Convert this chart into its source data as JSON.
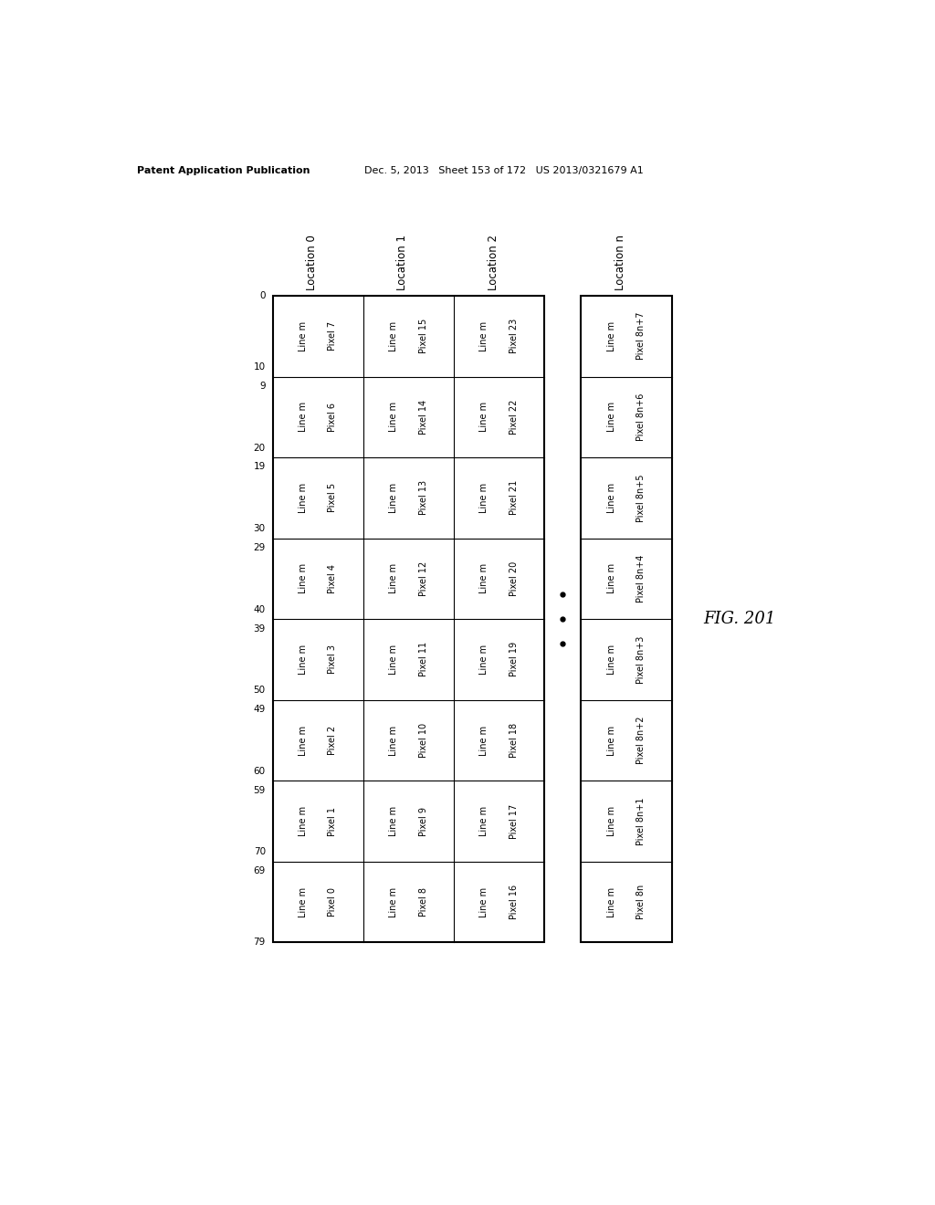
{
  "title": "FIG. 201",
  "header_left": "Patent Application Publication",
  "header_right": "Dec. 5, 2013   Sheet 153 of 172   US 2013/0321679 A1",
  "background_color": "#ffffff",
  "text_color": "#000000",
  "col_labels": [
    "Location 0",
    "Location 1",
    "Location 2",
    "Location n"
  ],
  "row_labels": [
    "0",
    "10 9",
    "20 19",
    "30 29",
    "40 39",
    "50 49",
    "60 59",
    "70 69",
    "79"
  ],
  "cells": [
    [
      "Line m\nPixel 7",
      "Line m\nPixel 15",
      "Line m\nPixel 23",
      "Line m\nPixel 8n+7"
    ],
    [
      "Line m\nPixel 6",
      "Line m\nPixel 14",
      "Line m\nPixel 22",
      "Line m\nPixel 8n+6"
    ],
    [
      "Line m\nPixel 5",
      "Line m\nPixel 13",
      "Line m\nPixel 21",
      "Line m\nPixel 8n+5"
    ],
    [
      "Line m\nPixel 4",
      "Line m\nPixel 12",
      "Line m\nPixel 20",
      "Line m\nPixel 8n+4"
    ],
    [
      "Line m\nPixel 3",
      "Line m\nPixel 11",
      "Line m\nPixel 19",
      "Line m\nPixel 8n+3"
    ],
    [
      "Line m\nPixel 2",
      "Line m\nPixel 10",
      "Line m\nPixel 18",
      "Line m\nPixel 8n+2"
    ],
    [
      "Line m\nPixel 1",
      "Line m\nPixel 9",
      "Line m\nPixel 17",
      "Line m\nPixel 8n+1"
    ],
    [
      "Line m\nPixel 0",
      "Line m\nPixel 8",
      "Line m\nPixel 16",
      "Line m\nPixel 8n"
    ]
  ],
  "num_rows": 8,
  "num_cols": 4
}
